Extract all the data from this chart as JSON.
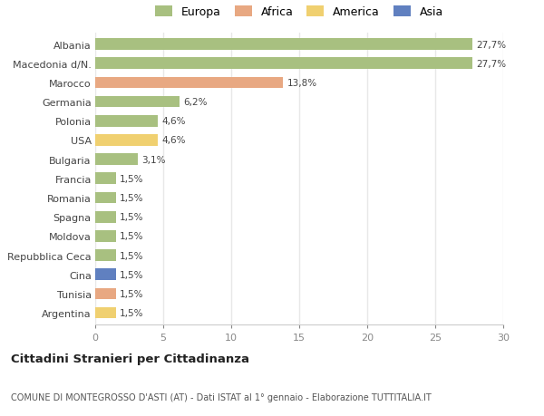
{
  "categories": [
    "Albania",
    "Macedonia d/N.",
    "Marocco",
    "Germania",
    "Polonia",
    "USA",
    "Bulgaria",
    "Francia",
    "Romania",
    "Spagna",
    "Moldova",
    "Repubblica Ceca",
    "Cina",
    "Tunisia",
    "Argentina"
  ],
  "values": [
    27.7,
    27.7,
    13.8,
    6.2,
    4.6,
    4.6,
    3.1,
    1.5,
    1.5,
    1.5,
    1.5,
    1.5,
    1.5,
    1.5,
    1.5
  ],
  "labels": [
    "27,7%",
    "27,7%",
    "13,8%",
    "6,2%",
    "4,6%",
    "4,6%",
    "3,1%",
    "1,5%",
    "1,5%",
    "1,5%",
    "1,5%",
    "1,5%",
    "1,5%",
    "1,5%",
    "1,5%"
  ],
  "colors": [
    "#a8c080",
    "#a8c080",
    "#e8a882",
    "#a8c080",
    "#a8c080",
    "#f0d070",
    "#a8c080",
    "#a8c080",
    "#a8c080",
    "#a8c080",
    "#a8c080",
    "#a8c080",
    "#6080c0",
    "#e8a882",
    "#f0d070"
  ],
  "legend_labels": [
    "Europa",
    "Africa",
    "America",
    "Asia"
  ],
  "legend_colors": [
    "#a8c080",
    "#e8a882",
    "#f0d070",
    "#6080c0"
  ],
  "title": "Cittadini Stranieri per Cittadinanza",
  "subtitle": "COMUNE DI MONTEGROSSO D'ASTI (AT) - Dati ISTAT al 1° gennaio - Elaborazione TUTTITALIA.IT",
  "xlim": [
    0,
    30
  ],
  "xticks": [
    0,
    5,
    10,
    15,
    20,
    25,
    30
  ],
  "background_color": "#ffffff",
  "grid_color": "#e8e8e8"
}
